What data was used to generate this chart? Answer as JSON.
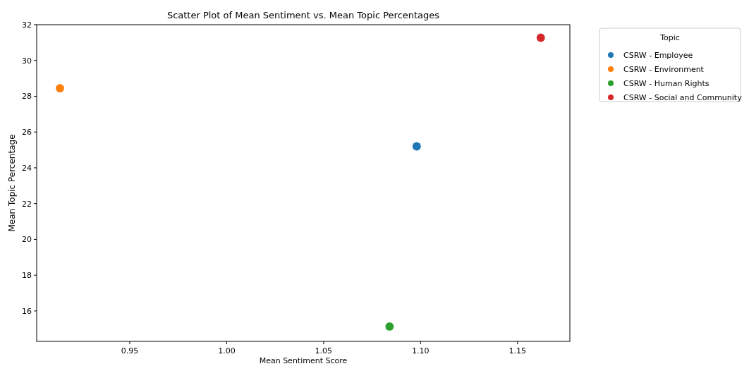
{
  "chart_data": {
    "type": "scatter",
    "title": "Scatter Plot of Mean Sentiment vs. Mean Topic Percentages",
    "xlabel": "Mean Sentiment Score",
    "ylabel": "Mean Topic Percentage",
    "legend_title": "Topic",
    "legend": "right",
    "marker": "circle",
    "grid": false,
    "xlim": [
      0.902,
      1.177
    ],
    "xticks": [
      {
        "value": 0.95,
        "label": "0.95"
      },
      {
        "value": 1.0,
        "label": "1.00"
      },
      {
        "value": 1.05,
        "label": "1.05"
      },
      {
        "value": 1.1,
        "label": "1.10"
      },
      {
        "value": 1.15,
        "label": "1.15"
      }
    ],
    "ylim": [
      14.3,
      32.0
    ],
    "yticks": [
      16,
      18,
      20,
      22,
      24,
      26,
      28,
      30,
      32
    ],
    "series": [
      {
        "name": "CSRW - Employee",
        "color": "#1f77b4",
        "x": [
          1.098
        ],
        "values": [
          25.2
        ]
      },
      {
        "name": "CSRW - Environment",
        "color": "#ff7f0e",
        "x": [
          0.914
        ],
        "values": [
          28.45
        ]
      },
      {
        "name": "CSRW - Human Rights",
        "color": "#2ca02c",
        "x": [
          1.084
        ],
        "values": [
          15.13
        ]
      },
      {
        "name": "CSRW - Social and Community",
        "color": "#d62728",
        "x": [
          1.162
        ],
        "values": [
          31.27
        ]
      }
    ]
  }
}
